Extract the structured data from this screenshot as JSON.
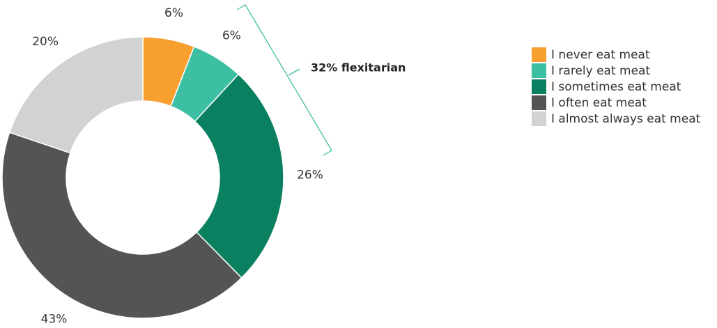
{
  "chart_data": {
    "type": "donut",
    "categories": [
      "I never eat meat",
      "I rarely eat meat",
      "I sometimes eat meat",
      "I often eat meat",
      "I almost always eat meat"
    ],
    "values": [
      6,
      6,
      26,
      43,
      20
    ],
    "value_labels": [
      "6%",
      "6%",
      "26%",
      "43%",
      "20%"
    ],
    "colors": [
      "#f79f2f",
      "#3dbfa3",
      "#0b8061",
      "#535554",
      "#d1d2d3"
    ],
    "annotation": "32% flexitarian",
    "legend": "right"
  }
}
